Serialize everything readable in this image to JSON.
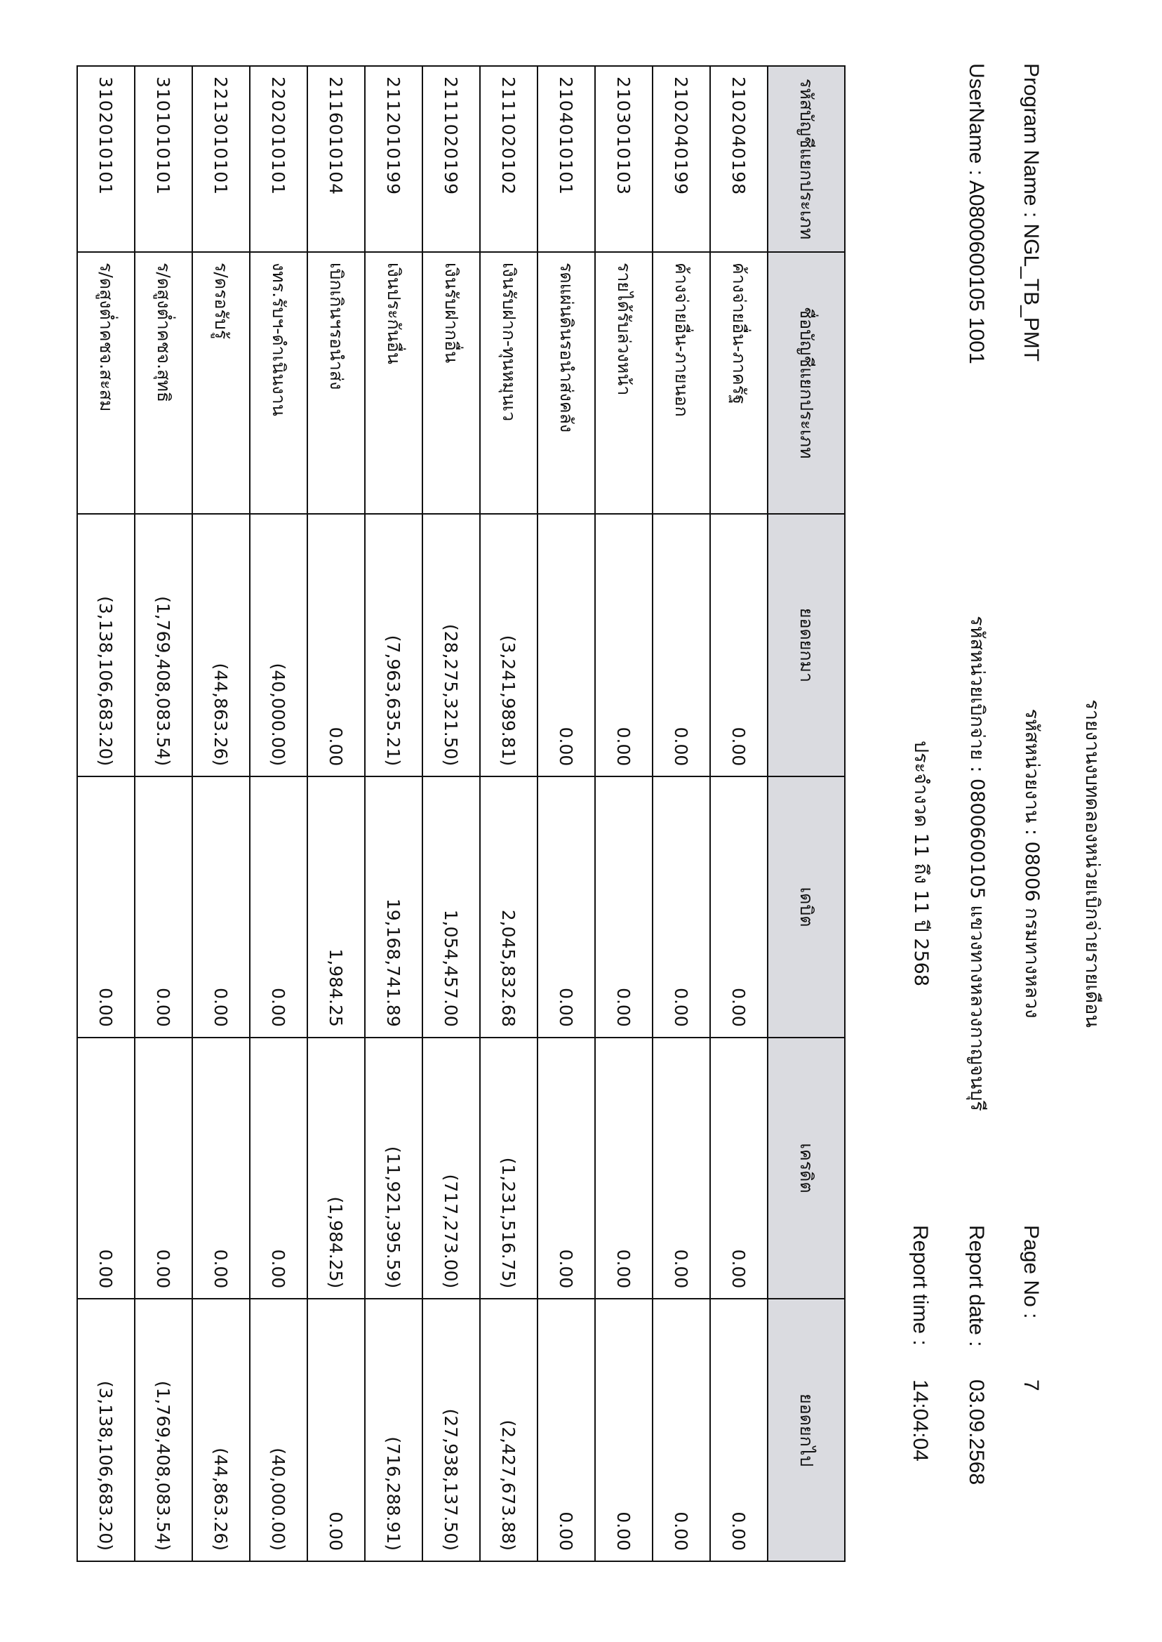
{
  "header": {
    "program_name": "Program Name : NGL_TB_PMT",
    "user_name": "UserName : A0800600105 1001",
    "title": "รายงานงบทดลองหน่วยเบิกจ่ายรายเดือน",
    "agency": "รหัสหน่วยงาน : 08006 กรมทางหลวง",
    "disbursing_unit": "รหัสหน่วยเบิกจ่าย : 0800600105 แขวงทางหลวงกาญจนบุรี",
    "period": "ประจำงวด 11 ถึง 11 ปี 2568",
    "page_no_label": "Page No :",
    "page_no": "7",
    "report_date_label": "Report date :",
    "report_date": "03.09.2568",
    "report_time_label": "Report time :",
    "report_time": "14:04:04"
  },
  "table": {
    "columns": [
      "รหัสบัญชีแยกประเภท",
      "ชื่อบัญชีแยกประเภท",
      "ยอดยกมา",
      "เดบิต",
      "เครดิต",
      "ยอดยกไป"
    ],
    "rows": [
      [
        "2102040198",
        "ค้างจ่ายอื่น-ภาครัฐ",
        "0.00",
        "0.00",
        "0.00",
        "0.00"
      ],
      [
        "2102040199",
        "ค้างจ่ายอื่น-ภายนอก",
        "0.00",
        "0.00",
        "0.00",
        "0.00"
      ],
      [
        "2103010103",
        "รายได้รับล่วงหน้า",
        "0.00",
        "0.00",
        "0.00",
        "0.00"
      ],
      [
        "2104010101",
        "รดแผ่นดินรอนำส่งคลัง",
        "0.00",
        "0.00",
        "0.00",
        "0.00"
      ],
      [
        "2111020102",
        "เงินรับฝาก-ทุนหมุนเว",
        "(3,241,989.81)",
        "2,045,832.68",
        "(1,231,516.75)",
        "(2,427,673.88)"
      ],
      [
        "2111020199",
        "เงินรับฝากอื่น",
        "(28,275,321.50)",
        "1,054,457.00",
        "(717,273.00)",
        "(27,938,137.50)"
      ],
      [
        "2112010199",
        "เงินประกันอื่น",
        "(7,963,635.21)",
        "19,168,741.89",
        "(11,921,395.59)",
        "(716,288.91)"
      ],
      [
        "2116010104",
        "เบิกเกินฯรอนำส่ง",
        "0.00",
        "1,984.25",
        "(1,984.25)",
        "0.00"
      ],
      [
        "2202010101",
        "งทร.รับฯ-ดำเนินงาน",
        "(40,000.00)",
        "0.00",
        "0.00",
        "(40,000.00)"
      ],
      [
        "2213010101",
        "ร/ดรอรับรู้",
        "(44,863.26)",
        "0.00",
        "0.00",
        "(44,863.26)"
      ],
      [
        "3101010101",
        "ร/ดสูงต่ำคชจ.สุทธิ",
        "(1,769,408,083.54)",
        "0.00",
        "0.00",
        "(1,769,408,083.54)"
      ],
      [
        "3102010101",
        "ร/ดสูงต่ำคชจ.สะสม",
        "(3,138,106,683.20)",
        "0.00",
        "0.00",
        "(3,138,106,683.20)"
      ]
    ]
  },
  "colors": {
    "header_fill": "#dadbe0",
    "border": "#111111"
  }
}
